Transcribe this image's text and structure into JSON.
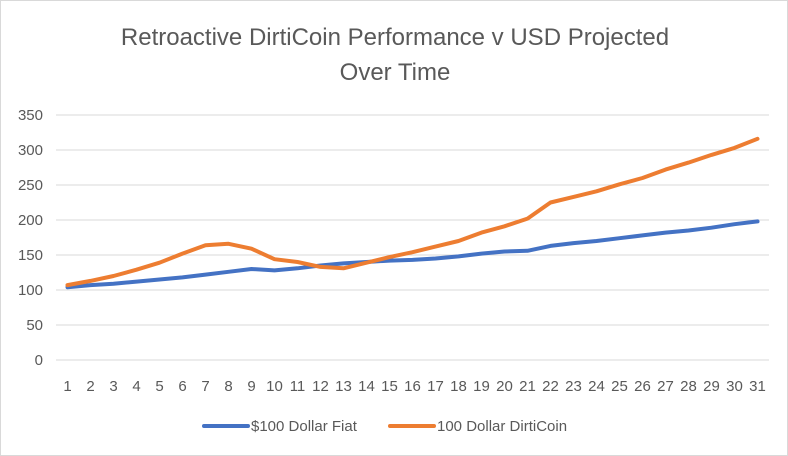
{
  "chart_data": {
    "type": "line",
    "title_lines": [
      "Retroactive DirtiCoin Performance v USD Projected",
      "Over Time"
    ],
    "xlabel": "",
    "ylabel": "",
    "ylim": [
      0,
      350
    ],
    "y_ticks": [
      0,
      50,
      100,
      150,
      200,
      250,
      300,
      350
    ],
    "grid": true,
    "legend_position": "bottom",
    "categories": [
      "1",
      "2",
      "3",
      "4",
      "5",
      "6",
      "7",
      "8",
      "9",
      "10",
      "11",
      "12",
      "13",
      "14",
      "15",
      "16",
      "17",
      "18",
      "19",
      "20",
      "21",
      "22",
      "23",
      "24",
      "25",
      "26",
      "27",
      "28",
      "29",
      "30",
      "31"
    ],
    "series": [
      {
        "name": "$100 Dollar Fiat",
        "color": "#4472c4",
        "values": [
          104,
          107,
          109,
          112,
          115,
          118,
          122,
          126,
          130,
          128,
          131,
          135,
          138,
          140,
          142,
          143,
          145,
          148,
          152,
          155,
          156,
          163,
          167,
          170,
          174,
          178,
          182,
          185,
          189,
          194,
          198
        ]
      },
      {
        "name": "100 Dollar DirtiCoin",
        "color": "#ed7d31",
        "values": [
          107,
          113,
          120,
          129,
          139,
          152,
          164,
          166,
          159,
          144,
          140,
          133,
          131,
          139,
          147,
          154,
          162,
          170,
          182,
          191,
          202,
          225,
          233,
          241,
          251,
          260,
          272,
          282,
          293,
          303,
          316
        ]
      }
    ]
  }
}
